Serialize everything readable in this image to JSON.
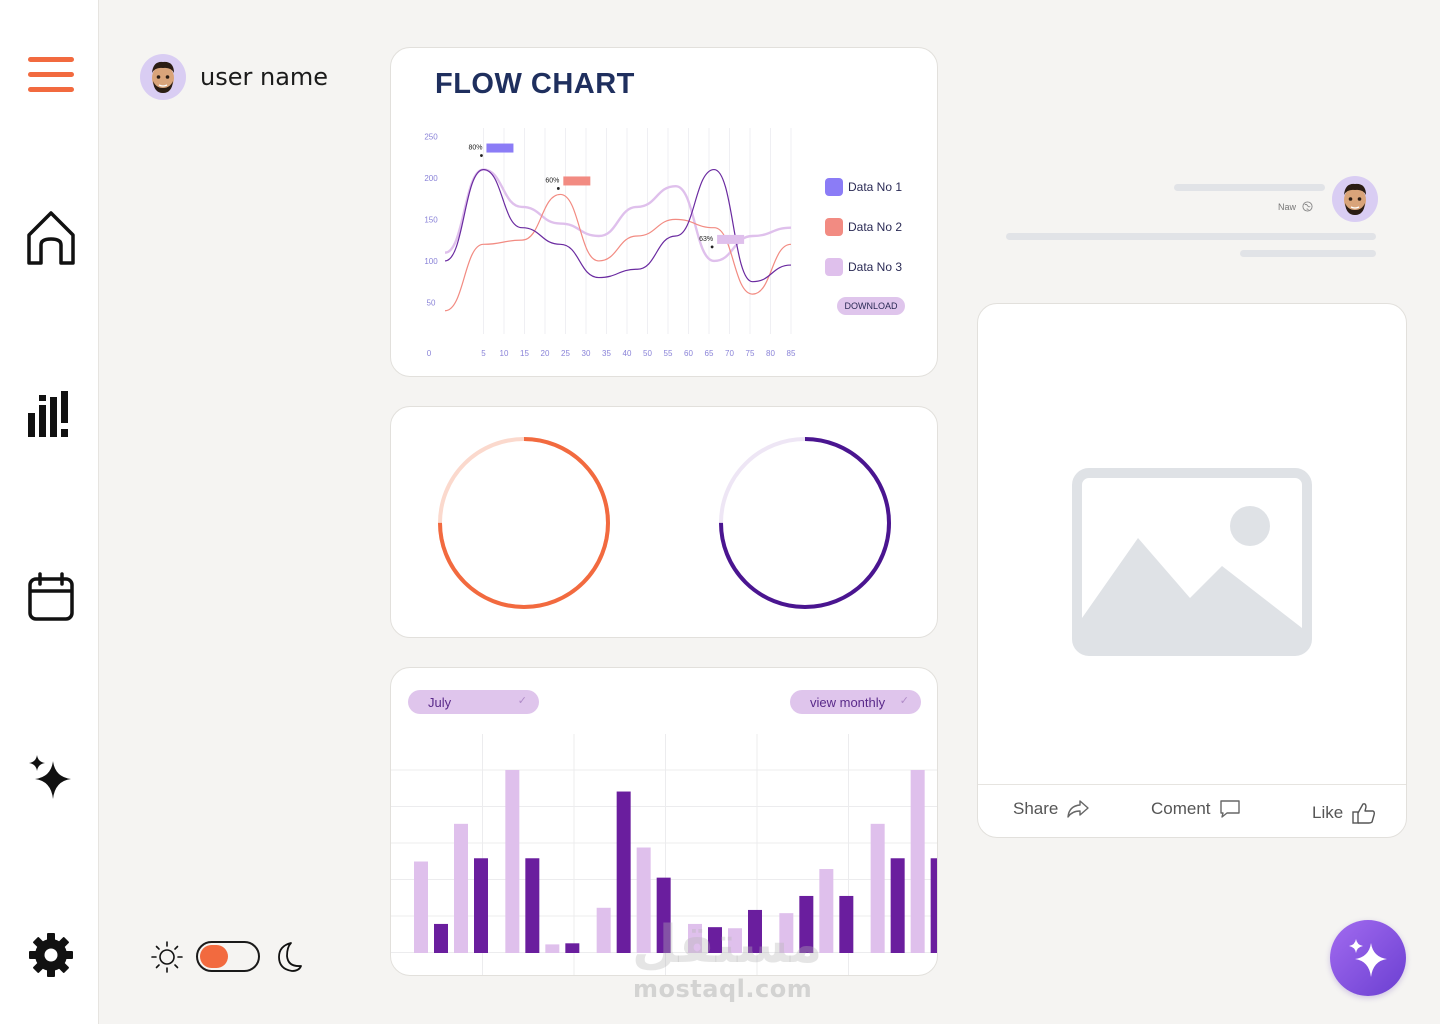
{
  "user": {
    "name": "user name",
    "avatar": "avatar-memoji"
  },
  "sidebar": {
    "items": [
      {
        "name": "menu-icon"
      },
      {
        "name": "home-icon"
      },
      {
        "name": "stats-icon"
      },
      {
        "name": "calendar-icon"
      },
      {
        "name": "sparkles-icon"
      },
      {
        "name": "settings-icon"
      }
    ],
    "accent": "#f26a3f"
  },
  "flow_chart": {
    "title": "FLOW CHART",
    "download_label": "DOWNLOAD",
    "legend": [
      {
        "label": "Data No 1",
        "color": "#8b7cf6"
      },
      {
        "label": "Data No 2",
        "color": "#f28b82"
      },
      {
        "label": "Data No 3",
        "color": "#dfc0ec"
      }
    ]
  },
  "chart_data": [
    {
      "type": "line",
      "title": "FLOW CHART",
      "x_ticks": [
        0,
        5,
        10,
        15,
        20,
        25,
        30,
        35,
        40,
        50,
        55,
        60,
        65,
        70,
        75,
        80,
        85
      ],
      "y_ticks": [
        50,
        100,
        150,
        200,
        250
      ],
      "annotations": [
        {
          "label": "80%",
          "color": "#8b7cf6"
        },
        {
          "label": "60%",
          "color": "#f28b82"
        },
        {
          "label": "63%",
          "color": "#dfc0ec"
        }
      ],
      "series": [
        {
          "name": "Data No 1",
          "color": "#6a2aa0",
          "values": [
            100,
            210,
            140,
            120,
            80,
            90,
            130,
            210,
            75,
            95
          ]
        },
        {
          "name": "Data No 2",
          "color": "#f28b82",
          "values": [
            40,
            120,
            125,
            180,
            100,
            130,
            150,
            140,
            60,
            120
          ]
        },
        {
          "name": "Data No 3",
          "color": "#dfc0ec",
          "values": [
            110,
            210,
            165,
            145,
            130,
            165,
            190,
            100,
            130,
            140
          ]
        }
      ]
    },
    {
      "type": "pie",
      "title": "",
      "values": [
        75
      ],
      "color": "#f26a3f",
      "track_color": "#fbd9cd"
    },
    {
      "type": "pie",
      "title": "",
      "values": [
        75
      ],
      "color": "#4a1590",
      "track_color": "#eee6f5"
    },
    {
      "type": "bar",
      "title": "",
      "series": [
        {
          "color": "#dfc0ec",
          "values": [
            85,
            120,
            170,
            8,
            42,
            98,
            27,
            23,
            37,
            78,
            120,
            170
          ]
        },
        {
          "color": "#6a1e9e",
          "values": [
            27,
            88,
            88,
            9,
            150,
            70,
            24,
            40,
            53,
            53,
            88,
            88
          ]
        }
      ]
    }
  ],
  "bar_panel": {
    "month_select": "July",
    "view_select": "view monthly"
  },
  "post": {
    "time_label": "Naw",
    "actions": {
      "share": "Share",
      "comment": "Coment",
      "like": "Like"
    }
  },
  "theme_toggle": {
    "mode": "light",
    "accent": "#f26a3f"
  },
  "watermark": {
    "arabic": "مستقل",
    "text": "mostaql.com"
  }
}
